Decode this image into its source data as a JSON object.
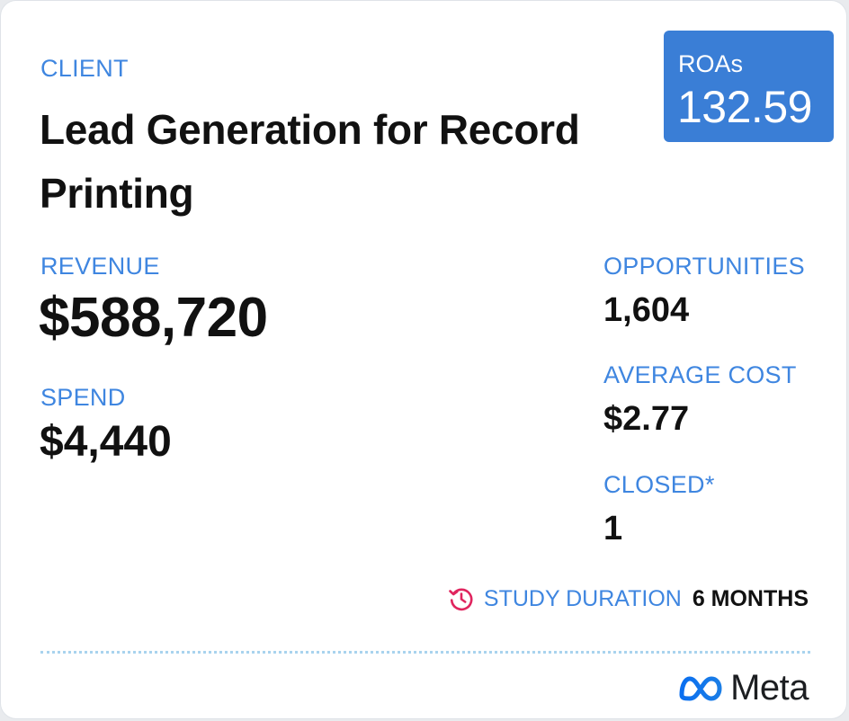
{
  "client": {
    "label": "CLIENT",
    "title": "Lead Generation for Record Printing"
  },
  "roas": {
    "label": "ROAs",
    "value": "132.59"
  },
  "metrics": {
    "revenue": {
      "label": "REVENUE",
      "value": "$588,720"
    },
    "spend": {
      "label": "SPEND",
      "value": "$4,440"
    },
    "opportunities": {
      "label": "OPPORTUNITIES",
      "value": "1,604"
    },
    "average_cost": {
      "label": "AVERAGE COST",
      "value": "$2.77"
    },
    "closed": {
      "label": "CLOSED*",
      "value": "1"
    }
  },
  "study": {
    "label": "STUDY DURATION",
    "value": "6 MONTHS",
    "icon": "history-clock-icon"
  },
  "brand": {
    "name": "Meta",
    "icon": "meta-infinity-icon"
  },
  "colors": {
    "accent": "#3f86e0",
    "roas_box": "#3a7ed6",
    "text": "#111111",
    "icon_pink": "#e0245e",
    "divider": "#a9d3ee"
  }
}
